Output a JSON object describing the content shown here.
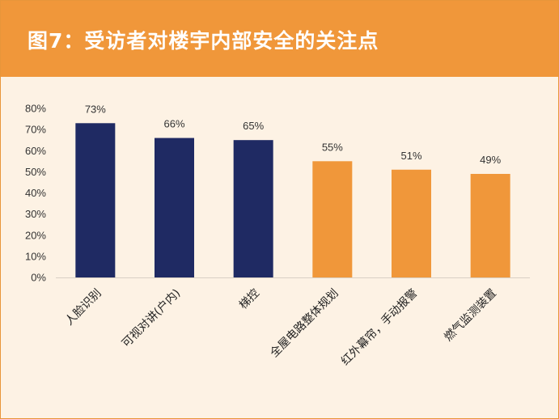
{
  "title": "图7：受访者对楼宇内部安全的关注点",
  "colors": {
    "header": "#F0973A",
    "background": "#FDF2E4",
    "bar_primary": "#1F2A63",
    "bar_secondary": "#F0973A"
  },
  "chart_data": {
    "type": "bar",
    "categories": [
      "人脸识别",
      "可视对讲(户内)",
      "梯控",
      "全屋电路整体规划",
      "红外幕帘，手动报警",
      "燃气监测装置"
    ],
    "values": [
      73,
      66,
      65,
      55,
      51,
      49
    ],
    "data_labels": [
      "73%",
      "66%",
      "65%",
      "55%",
      "51%",
      "49%"
    ],
    "bar_colors": [
      "#1F2A63",
      "#1F2A63",
      "#1F2A63",
      "#F0973A",
      "#F0973A",
      "#F0973A"
    ],
    "yticks": [
      "0%",
      "10%",
      "20%",
      "30%",
      "40%",
      "50%",
      "60%",
      "70%",
      "80%"
    ],
    "ylim": [
      0,
      80
    ],
    "grid": false,
    "legend": "none"
  }
}
